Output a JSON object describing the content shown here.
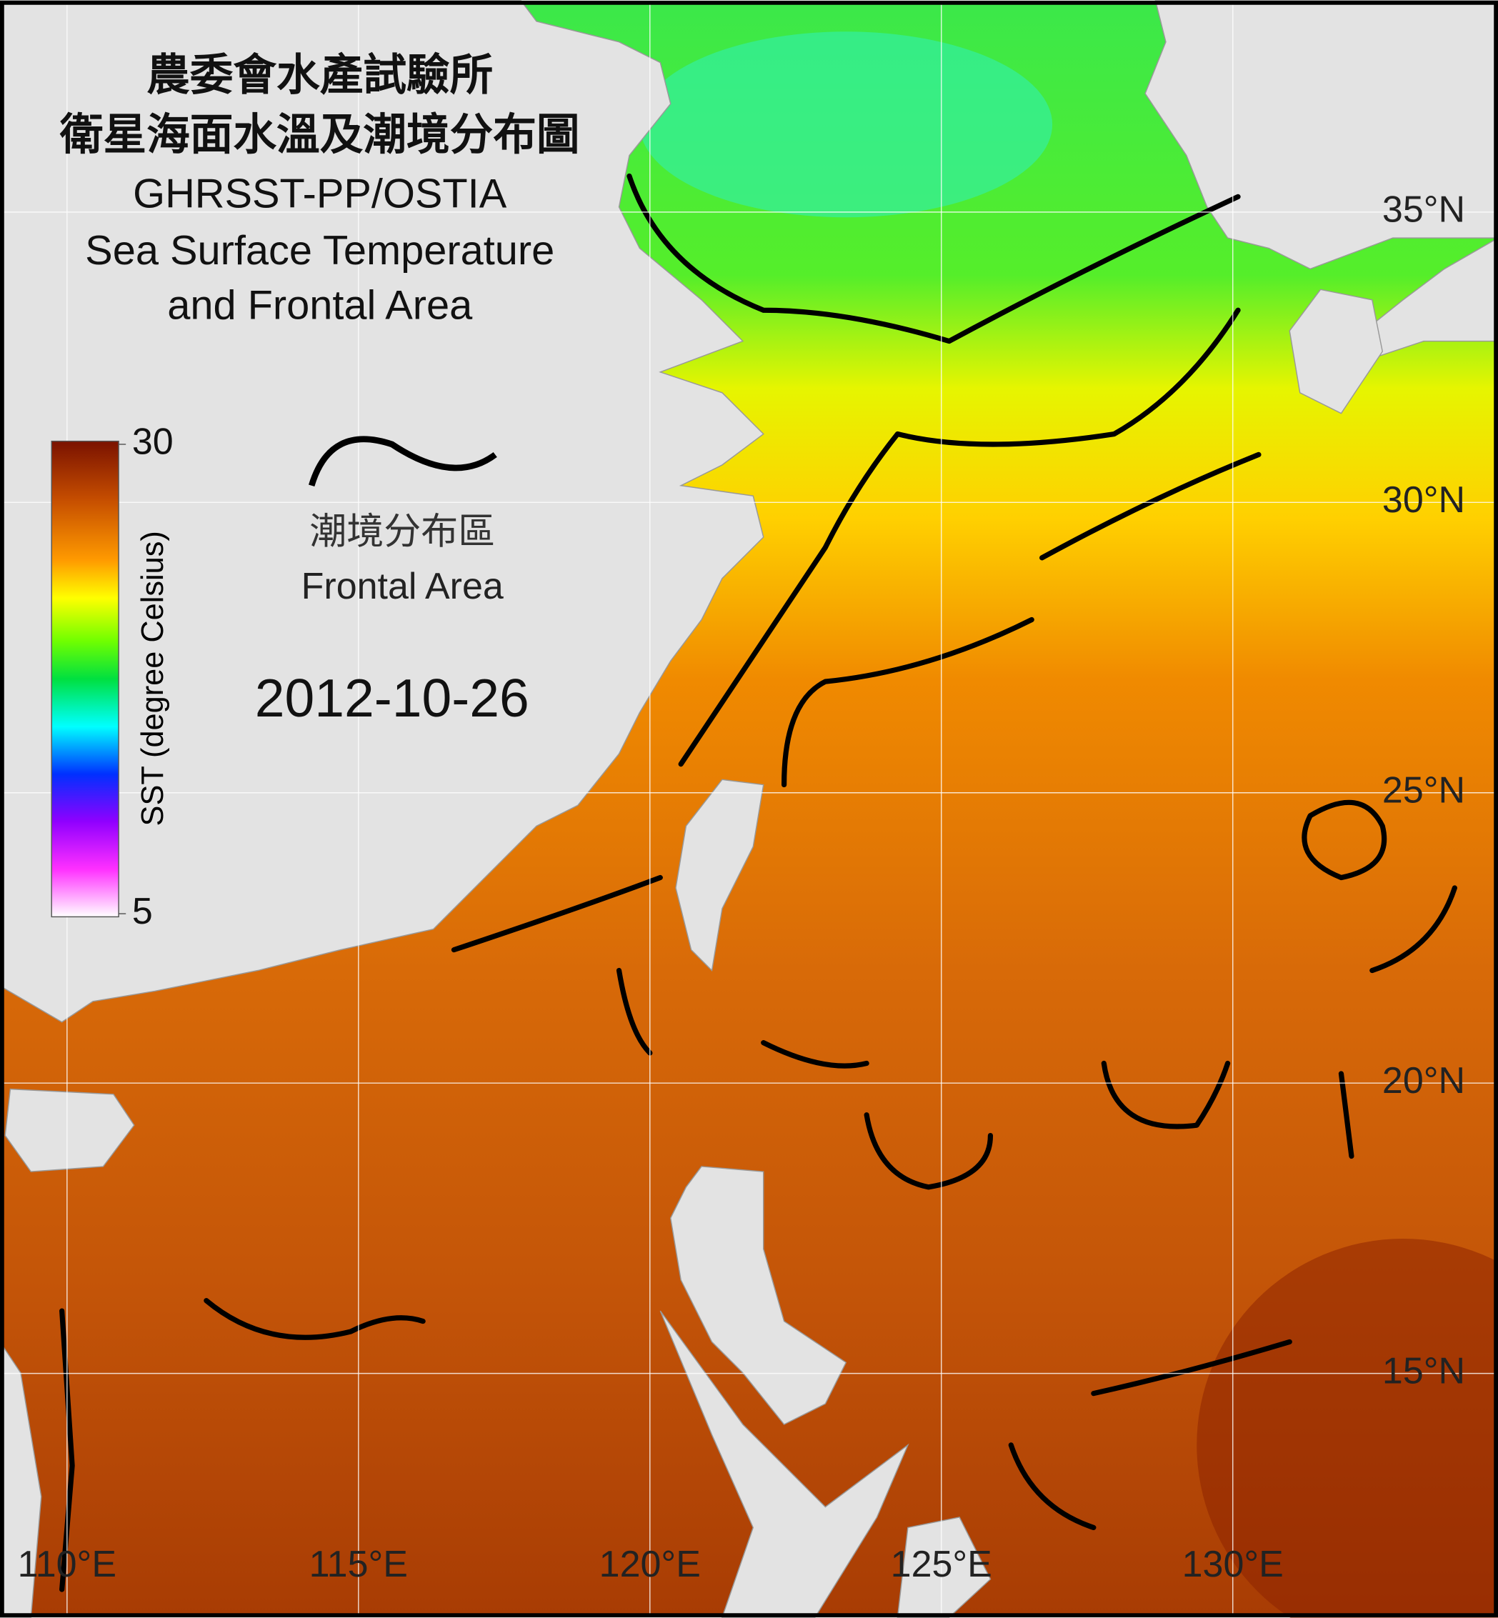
{
  "title": [
    "農委會水產試驗所",
    "衛星海面水溫及潮境分布圖",
    "GHRSST-PP/OSTIA",
    "Sea Surface Temperature",
    "and Frontal Area"
  ],
  "colorbar": {
    "label": "SST (degree Celsius)",
    "lim": [
      5,
      30
    ],
    "ticks": [
      30,
      5
    ]
  },
  "legend": {
    "label_zh": "潮境分布區",
    "label_en": "Frontal Area"
  },
  "date": "2012-10-26",
  "map": {
    "xlim": [
      108.85,
      134.55
    ],
    "ylim": [
      10.8,
      38.64
    ],
    "xticks": [
      {
        "value": 110,
        "label": "110°E"
      },
      {
        "value": 115,
        "label": "115°E"
      },
      {
        "value": 120,
        "label": "120°E"
      },
      {
        "value": 125,
        "label": "125°E"
      },
      {
        "value": 130,
        "label": "130°E"
      }
    ],
    "yticks": [
      {
        "value": 35,
        "label": "35°N"
      },
      {
        "value": 30,
        "label": "30°N"
      },
      {
        "value": 25,
        "label": "25°N"
      },
      {
        "value": 20,
        "label": "20°N"
      },
      {
        "value": 15,
        "label": "15°N"
      }
    ]
  }
}
